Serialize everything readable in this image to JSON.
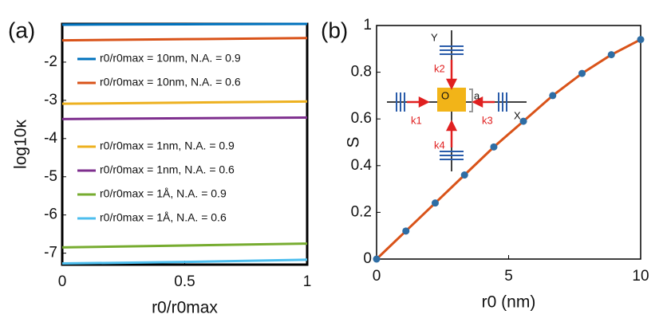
{
  "chart_data": [
    {
      "type": "line",
      "panel_label": "(a)",
      "xlabel": "r0/r0max",
      "ylabel": "log10κ",
      "xlim": [
        0,
        1
      ],
      "ylim": [
        -7.3,
        -1
      ],
      "xticks": [
        0,
        0.5,
        1
      ],
      "yticks": [
        -2,
        -3,
        -4,
        -5,
        -6,
        -7
      ],
      "x": [
        0,
        0.5,
        1
      ],
      "series": [
        {
          "name": "r0/r0max = 10nm, N.A. = 0.9",
          "color": "#0072bd",
          "values": [
            -1.02,
            -1.01,
            -1.0
          ]
        },
        {
          "name": "r0/r0max = 10nm, N.A. = 0.6",
          "color": "#d95319",
          "values": [
            -1.43,
            -1.4,
            -1.37
          ]
        },
        {
          "name": "r0/r0max = 1nm, N.A. = 0.9",
          "color": "#edb120",
          "values": [
            -3.09,
            -3.06,
            -3.03
          ]
        },
        {
          "name": "r0/r0max = 1nm, N.A. = 0.6",
          "color": "#7e2f8e",
          "values": [
            -3.49,
            -3.47,
            -3.45
          ]
        },
        {
          "name": "r0/r0max = 1Å, N.A. = 0.9",
          "color": "#77ac30",
          "values": [
            -6.85,
            -6.8,
            -6.75
          ]
        },
        {
          "name": "r0/r0max = 1Å, N.A. = 0.6",
          "color": "#4dbeee",
          "values": [
            -7.27,
            -7.23,
            -7.17
          ]
        }
      ]
    },
    {
      "type": "line",
      "panel_label": "(b)",
      "xlabel": "r0 (nm)",
      "ylabel": "S",
      "xlim": [
        0,
        10
      ],
      "ylim": [
        0,
        1
      ],
      "xticks": [
        0,
        5,
        10
      ],
      "yticks": [
        0,
        0.2,
        0.4,
        0.6,
        0.8,
        1
      ],
      "x": [
        0,
        1.11,
        2.22,
        3.33,
        4.44,
        5.56,
        6.67,
        7.78,
        8.89,
        10
      ],
      "series": [
        {
          "color": "#d95319",
          "marker_color": "#2e6da4",
          "values": [
            0,
            0.12,
            0.24,
            0.36,
            0.48,
            0.59,
            0.7,
            0.795,
            0.875,
            0.94
          ]
        }
      ],
      "inset": {
        "y_label": "Y",
        "x_label": "X",
        "origin": "O",
        "size": "a",
        "k1": "k1",
        "k2": "k2",
        "k3": "k3",
        "k4": "k4"
      }
    }
  ]
}
